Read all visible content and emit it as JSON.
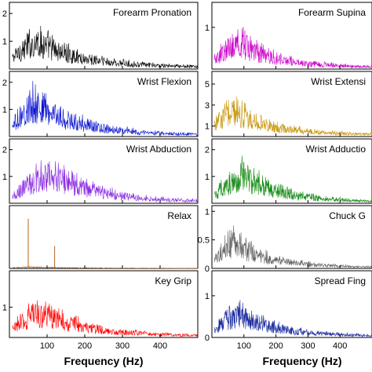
{
  "chart_data": {
    "type": "line",
    "description_scope": "spectra",
    "xlabel": "Frequency (Hz)",
    "xticks": [
      100,
      200,
      300,
      400
    ],
    "xlim": [
      0,
      500
    ],
    "columns": [
      {
        "panels": [
          {
            "title": "Forearm Pronation",
            "color": "#000000",
            "ylim": [
              0,
              2.4
            ],
            "yticks": [
              1,
              2
            ],
            "baseline": 0.4,
            "peak": 1.6,
            "peak_freq": 70,
            "spike_freqs": [],
            "spike_height": 0
          },
          {
            "title": "Wrist Flexion",
            "color": "#0a14d2",
            "ylim": [
              0,
              2.4
            ],
            "yticks": [
              1,
              2
            ],
            "baseline": 0.3,
            "peak": 1.9,
            "peak_freq": 70,
            "spike_freqs": [],
            "spike_height": 0
          },
          {
            "title": "Wrist Abduction",
            "color": "#8a2be2",
            "ylim": [
              0,
              2.4
            ],
            "yticks": [
              1,
              2
            ],
            "baseline": 0.3,
            "peak": 1.8,
            "peak_freq": 110,
            "spike_freqs": [],
            "spike_height": 0
          },
          {
            "title": "Relax",
            "color": "#b5651d",
            "ylim": [
              0,
              2.4
            ],
            "yticks": [],
            "baseline": 0.03,
            "peak": 0.08,
            "peak_freq": 60,
            "spike_freqs": [
              50,
              120
            ],
            "spike_height": 1.9
          },
          {
            "title": "Key Grip",
            "color": "#ff0000",
            "ylim": [
              0,
              2.2
            ],
            "yticks": [
              1
            ],
            "baseline": 0.3,
            "peak": 1.3,
            "peak_freq": 80,
            "spike_freqs": [],
            "spike_height": 0
          }
        ]
      },
      {
        "panels": [
          {
            "title": "Forearm Supina",
            "color": "#cc00cc",
            "ylim": [
              0,
              1.6
            ],
            "yticks": [
              1
            ],
            "baseline": 0.25,
            "peak": 1.0,
            "peak_freq": 80,
            "spike_freqs": [],
            "spike_height": 0
          },
          {
            "title": "Wrist Extensi",
            "color": "#c8960a",
            "ylim": [
              0,
              6.2
            ],
            "yticks": [
              1,
              3,
              5
            ],
            "baseline": 1.0,
            "peak": 4.0,
            "peak_freq": 60,
            "spike_freqs": [],
            "spike_height": 0
          },
          {
            "title": "Wrist Adductio",
            "color": "#138a13",
            "ylim": [
              0,
              2.4
            ],
            "yticks": [
              1,
              2
            ],
            "baseline": 0.3,
            "peak": 1.6,
            "peak_freq": 100,
            "spike_freqs": [],
            "spike_height": 0
          },
          {
            "title": "Chuck G",
            "color": "#666666",
            "ylim": [
              0,
              1.1
            ],
            "yticks": [
              0,
              0.5,
              1
            ],
            "baseline": 0.1,
            "peak": 0.7,
            "peak_freq": 60,
            "spike_freqs": [],
            "spike_height": 0
          },
          {
            "title": "Spread Fing",
            "color": "#1a2a9e",
            "ylim": [
              0,
              1.6
            ],
            "yticks": [
              0,
              1
            ],
            "baseline": 0.2,
            "peak": 0.9,
            "peak_freq": 80,
            "spike_freqs": [],
            "spike_height": 0
          }
        ]
      }
    ]
  }
}
